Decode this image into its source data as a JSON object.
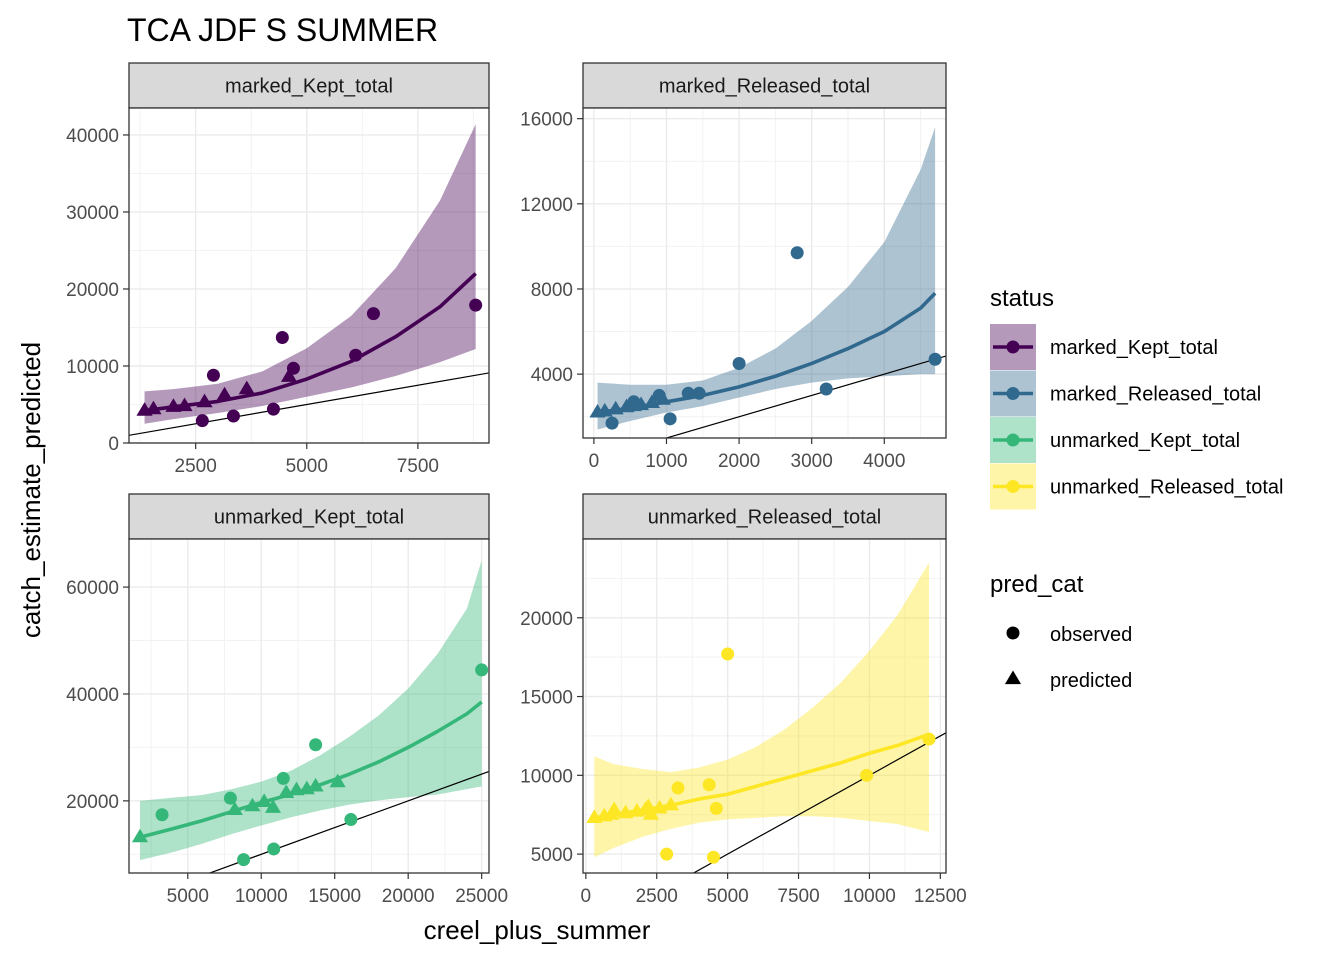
{
  "title": "TCA JDF S SUMMER",
  "colors": {
    "marked_Kept_total": "#440154",
    "marked_Released_total": "#31688E",
    "unmarked_Kept_total": "#35B779",
    "unmarked_Released_total": "#FDE725"
  },
  "chart_data": {
    "type": "scatter",
    "title": "TCA JDF S SUMMER",
    "xlabel": "creel_plus_summer",
    "ylabel": "catch_estimate_predicted",
    "grid": true,
    "legend_placement": "right",
    "legends": [
      {
        "title": "status",
        "entries": [
          "marked_Kept_total",
          "marked_Released_total",
          "unmarked_Kept_total",
          "unmarked_Released_total"
        ]
      },
      {
        "title": "pred_cat",
        "entries": [
          "observed",
          "predicted"
        ]
      }
    ],
    "facets": [
      {
        "name": "marked_Kept_total",
        "xlim": [
          1000,
          9100
        ],
        "ylim": [
          0,
          43500
        ],
        "xticks": [
          2500,
          5000,
          7500
        ],
        "xtick_labels": [
          "2500",
          "5000",
          "7500"
        ],
        "yticks": [
          0,
          10000,
          20000,
          30000,
          40000
        ],
        "ytick_labels": [
          "0",
          "10000",
          "20000",
          "30000",
          "40000"
        ],
        "fit_line": {
          "x": [
            1350,
            2000,
            3000,
            4000,
            5000,
            6000,
            7000,
            8000,
            8800
          ],
          "y": [
            4200,
            4700,
            5400,
            6500,
            8300,
            10600,
            13800,
            17700,
            22000
          ]
        },
        "confidence_band": {
          "x": [
            1350,
            2000,
            3000,
            4000,
            5000,
            6000,
            7000,
            8000,
            8800
          ],
          "lower": [
            2500,
            3100,
            3900,
            4800,
            6000,
            7200,
            8700,
            10500,
            12200
          ],
          "upper": [
            6700,
            7000,
            7700,
            9300,
            12300,
            16500,
            22700,
            31500,
            41400
          ]
        },
        "reference_line": {
          "x": [
            1000,
            9100
          ],
          "y": [
            1000,
            9100
          ]
        },
        "observed": {
          "x": [
            2650,
            2900,
            3350,
            4250,
            4450,
            4700,
            6100,
            6500,
            8800
          ],
          "y": [
            2900,
            8800,
            3500,
            4400,
            13700,
            9700,
            11400,
            16800,
            17900
          ]
        },
        "predicted": {
          "x": [
            1350,
            1550,
            2000,
            2250,
            2700,
            3150,
            3650,
            4600
          ],
          "y": [
            4200,
            4400,
            4700,
            4800,
            5300,
            6200,
            7000,
            8600
          ]
        }
      },
      {
        "name": "marked_Released_total",
        "xlim": [
          -150,
          4850
        ],
        "ylim": [
          1000,
          16500
        ],
        "xticks": [
          0,
          1000,
          2000,
          3000,
          4000
        ],
        "xtick_labels": [
          "0",
          "1000",
          "2000",
          "3000",
          "4000"
        ],
        "yticks": [
          4000,
          8000,
          12000,
          16000
        ],
        "ytick_labels": [
          "4000",
          "8000",
          "12000",
          "16000"
        ],
        "fit_line": {
          "x": [
            50,
            500,
            1000,
            1500,
            2000,
            2500,
            3000,
            3500,
            4000,
            4500,
            4700
          ],
          "y": [
            2200,
            2400,
            2700,
            3000,
            3400,
            3900,
            4500,
            5200,
            6000,
            7100,
            7800
          ]
        },
        "confidence_band": {
          "x": [
            50,
            500,
            1000,
            1500,
            2000,
            2500,
            3000,
            3500,
            4000,
            4500,
            4700
          ],
          "lower": [
            1400,
            1800,
            2200,
            2500,
            2900,
            3300,
            3600,
            3800,
            3900,
            4000,
            4000
          ],
          "upper": [
            3600,
            3500,
            3500,
            3700,
            4300,
            5200,
            6500,
            8100,
            10200,
            13600,
            15600
          ]
        },
        "reference_line": {
          "x": [
            -150,
            4850
          ],
          "y": [
            -150,
            4850
          ]
        },
        "observed": {
          "x": [
            250,
            550,
            900,
            1050,
            1300,
            1450,
            2000,
            2800,
            3200,
            4700
          ],
          "y": [
            1700,
            2700,
            3000,
            1900,
            3100,
            3100,
            4500,
            9700,
            3300,
            4700
          ]
        },
        "predicted": {
          "x": [
            50,
            150,
            300,
            450,
            550,
            650,
            800,
            950
          ],
          "y": [
            2200,
            2250,
            2350,
            2450,
            2500,
            2550,
            2650,
            2800
          ]
        }
      },
      {
        "name": "unmarked_Kept_total",
        "xlim": [
          1000,
          25500
        ],
        "ylim": [
          6500,
          69000
        ],
        "xticks": [
          5000,
          10000,
          15000,
          20000,
          25000
        ],
        "xtick_labels": [
          "5000",
          "10000",
          "15000",
          "20000",
          "25000"
        ],
        "yticks": [
          20000,
          40000,
          60000
        ],
        "ytick_labels": [
          "20000",
          "40000",
          "60000"
        ],
        "fit_line": {
          "x": [
            1750,
            4000,
            6000,
            8000,
            10000,
            12000,
            14000,
            16000,
            18000,
            20000,
            22000,
            24000,
            25000
          ],
          "y": [
            13200,
            14800,
            16300,
            18000,
            19700,
            21200,
            23000,
            25000,
            27300,
            30000,
            33000,
            36300,
            38500
          ]
        },
        "confidence_band": {
          "x": [
            1750,
            4000,
            6000,
            8000,
            10000,
            12000,
            14000,
            16000,
            18000,
            20000,
            22000,
            24000,
            25000
          ],
          "lower": [
            8900,
            10400,
            12000,
            13800,
            15400,
            16900,
            18200,
            19300,
            20100,
            20700,
            21200,
            22200,
            22700
          ],
          "upper": [
            20000,
            20600,
            21100,
            22200,
            23600,
            25600,
            28500,
            32000,
            36000,
            41000,
            47500,
            56000,
            65000
          ]
        },
        "reference_line": {
          "x": [
            1000,
            25500
          ],
          "y": [
            1000,
            25500
          ]
        },
        "observed": {
          "x": [
            3250,
            7900,
            8800,
            10850,
            11500,
            13700,
            16100,
            25000
          ],
          "y": [
            17400,
            20500,
            9000,
            11000,
            24200,
            30500,
            16500,
            44500
          ]
        },
        "predicted": {
          "x": [
            1750,
            8200,
            9400,
            10200,
            10800,
            11700,
            12400,
            13100,
            13700,
            15200
          ],
          "y": [
            13200,
            18300,
            19000,
            19800,
            18700,
            21500,
            22000,
            22200,
            22700,
            23500
          ]
        }
      },
      {
        "name": "unmarked_Released_total",
        "xlim": [
          -100,
          12700
        ],
        "ylim": [
          3800,
          25000
        ],
        "xticks": [
          0,
          2500,
          5000,
          7500,
          10000,
          12500
        ],
        "xtick_labels": [
          "0",
          "2500",
          "5000",
          "7500",
          "10000",
          "12500"
        ],
        "yticks": [
          5000,
          10000,
          15000,
          20000
        ],
        "ytick_labels": [
          "5000",
          "10000",
          "15000",
          "20000"
        ],
        "fit_line": {
          "x": [
            300,
            1000,
            2000,
            3000,
            4000,
            5000,
            6000,
            7000,
            8000,
            9000,
            10000,
            11000,
            12100
          ],
          "y": [
            7300,
            7500,
            7800,
            8100,
            8500,
            8800,
            9300,
            9800,
            10300,
            10800,
            11400,
            11900,
            12600
          ]
        },
        "confidence_band": {
          "x": [
            300,
            1000,
            2000,
            3000,
            4000,
            5000,
            6000,
            7000,
            8000,
            9000,
            10000,
            11000,
            12100
          ],
          "lower": [
            4800,
            5400,
            6100,
            6600,
            7000,
            7200,
            7300,
            7400,
            7400,
            7300,
            7100,
            6900,
            6400
          ],
          "upper": [
            11200,
            10700,
            10400,
            10200,
            10500,
            11000,
            11800,
            12900,
            14300,
            15900,
            17900,
            20200,
            23500
          ]
        },
        "reference_line": {
          "x": [
            -100,
            12700
          ],
          "y": [
            -100,
            12700
          ]
        },
        "observed": {
          "x": [
            2850,
            3250,
            4350,
            4500,
            4600,
            5000,
            9900,
            12100
          ],
          "y": [
            5000,
            9200,
            9400,
            4800,
            7900,
            17700,
            10000,
            12300
          ]
        },
        "predicted": {
          "x": [
            300,
            650,
            900,
            1000,
            1400,
            1800,
            2100,
            2200,
            2300,
            2600,
            3000
          ],
          "y": [
            7300,
            7400,
            7500,
            7800,
            7600,
            7700,
            7800,
            8000,
            7500,
            7900,
            8100
          ]
        }
      }
    ]
  }
}
